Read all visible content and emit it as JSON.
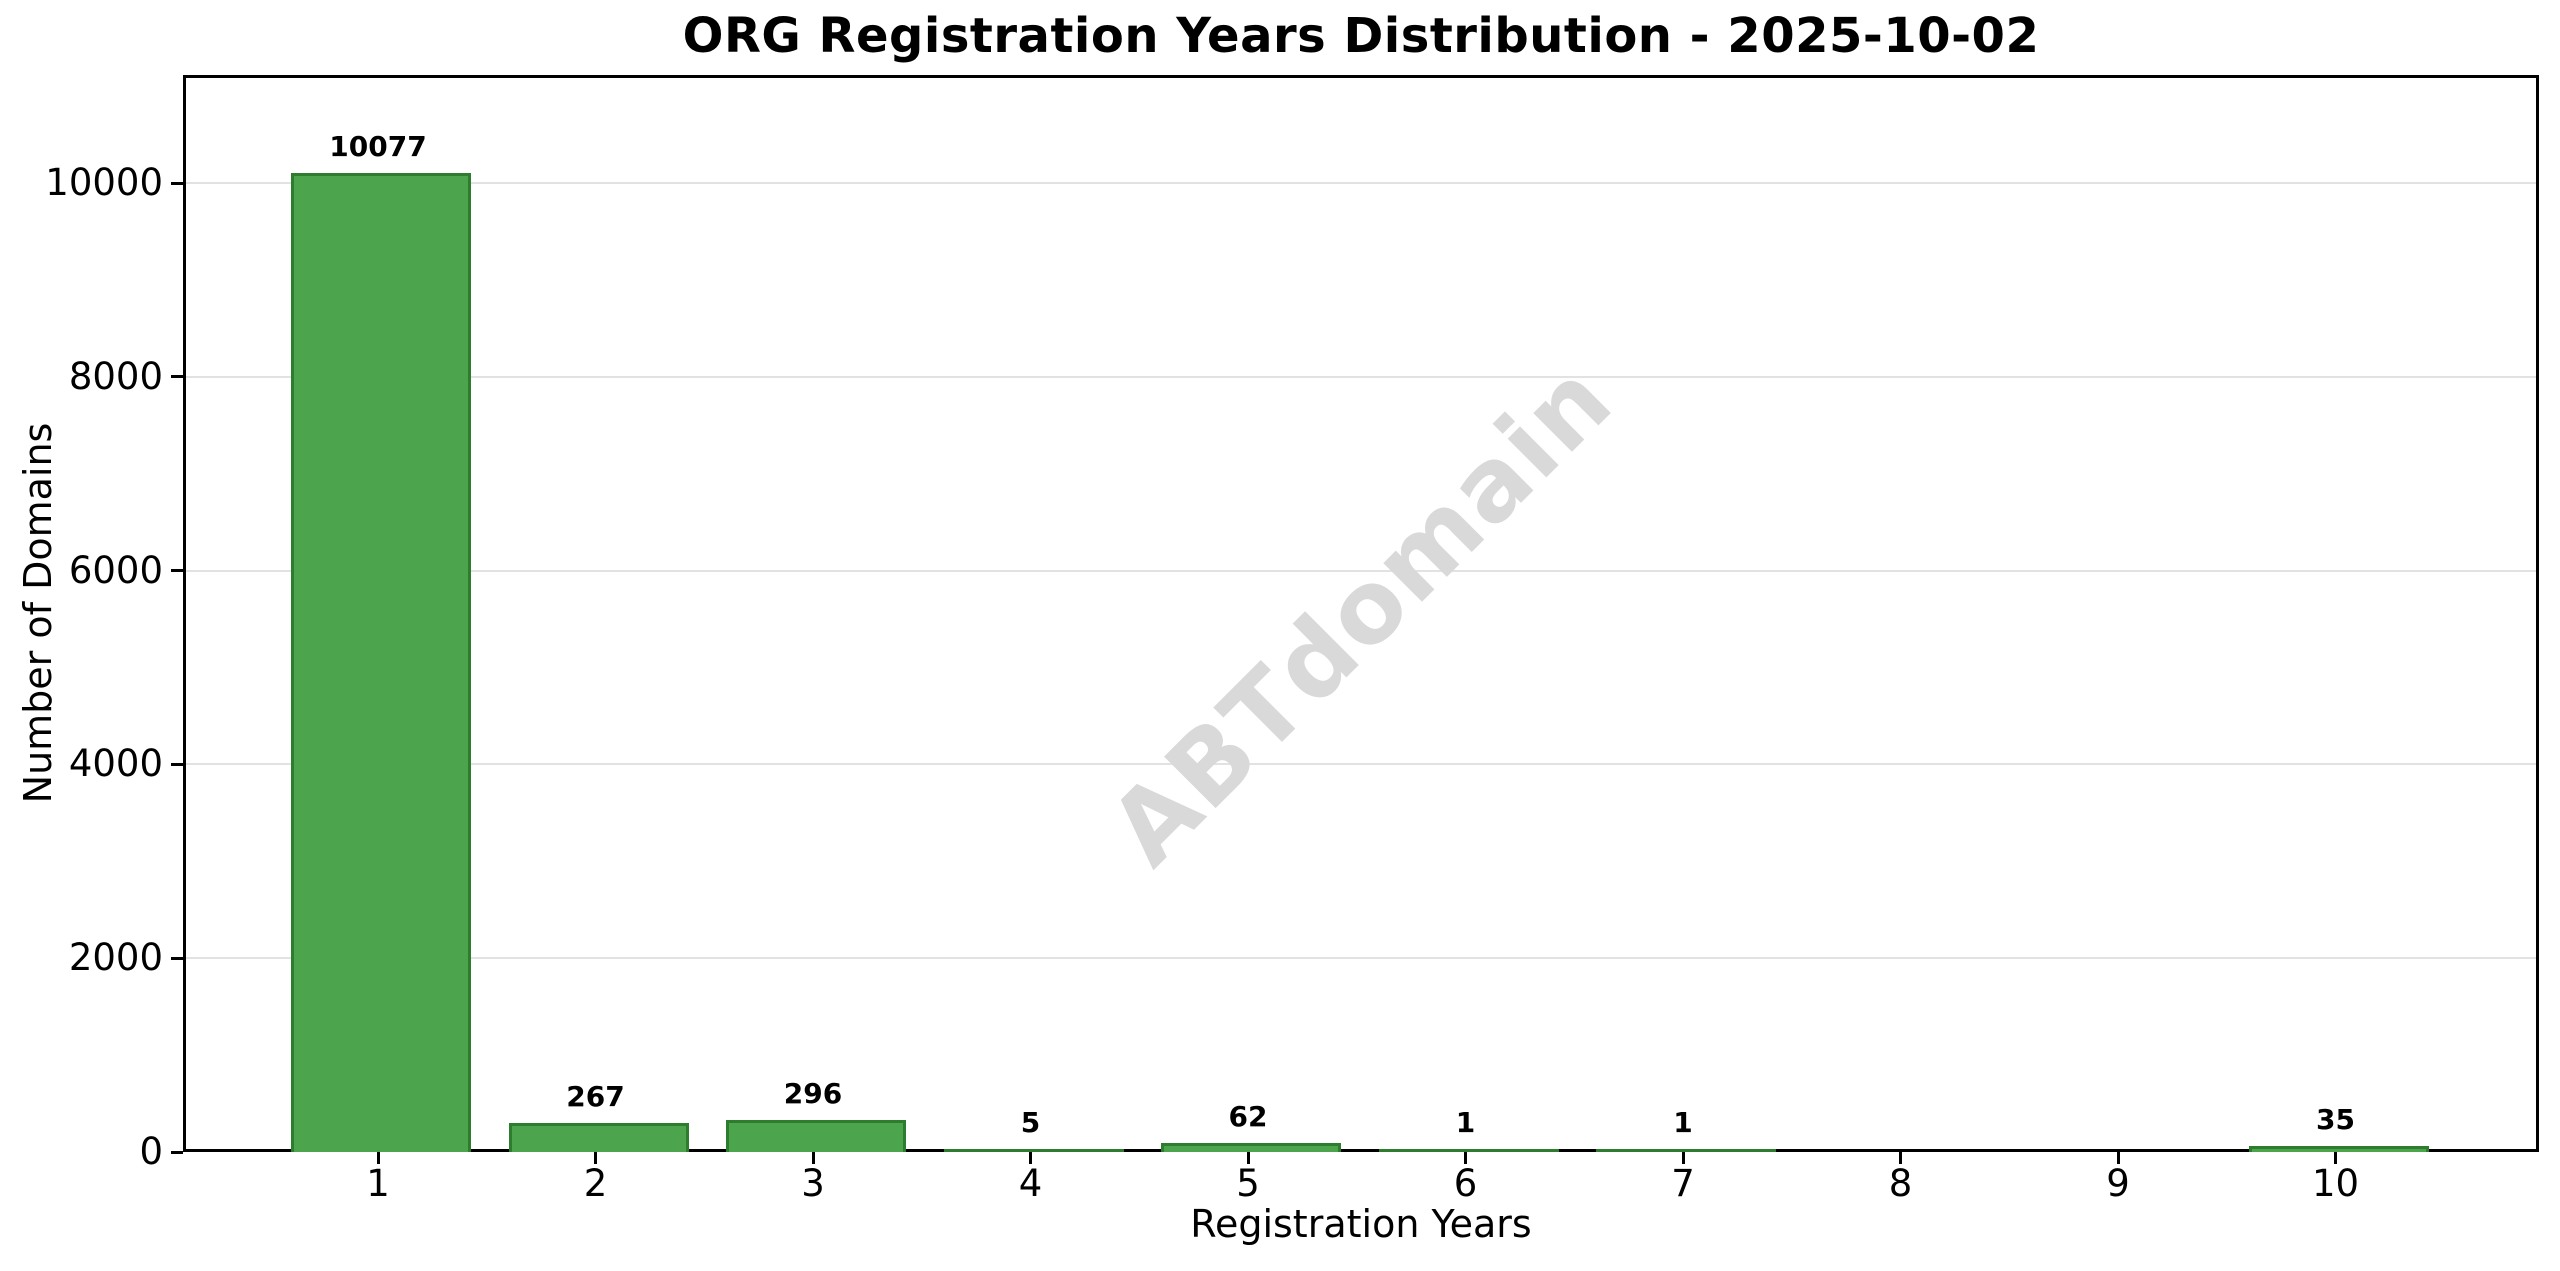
{
  "chart_data": {
    "type": "bar",
    "title": "ORG Registration Years Distribution - 2025-10-02",
    "xlabel": "Registration Years",
    "ylabel": "Number of Domains",
    "categories": [
      1,
      2,
      3,
      4,
      5,
      6,
      7,
      8,
      9,
      10
    ],
    "values": [
      10077,
      267,
      296,
      5,
      62,
      1,
      1,
      0,
      0,
      35
    ],
    "y_ticks": [
      0,
      2000,
      4000,
      6000,
      8000,
      10000
    ],
    "ylim": [
      0,
      11115
    ],
    "grid": "horizontal",
    "legend": null,
    "watermark": "ABTdomain",
    "colors": {
      "bar_fill": "#4CA44C",
      "bar_edge": "#2E7D2E",
      "grid": "#e2e2e2",
      "watermark": "#d9d9d9",
      "text": "#000000",
      "spine": "#000000"
    }
  }
}
